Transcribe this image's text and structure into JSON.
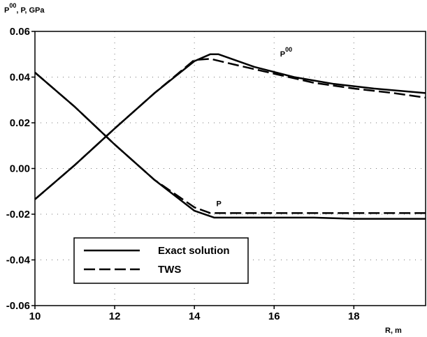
{
  "chart_data": {
    "type": "line",
    "ylabel": {
      "p_base": "P",
      "p_sup": "00",
      "rest": ", P, GPa"
    },
    "xlabel": "R, m",
    "xlim": [
      10,
      19.8
    ],
    "ylim": [
      -0.06,
      0.06
    ],
    "x_ticks": [
      10,
      12,
      14,
      16,
      18
    ],
    "y_ticks": [
      0.06,
      0.04,
      0.02,
      0.0,
      -0.02,
      -0.04,
      -0.06
    ],
    "y_tick_labels": [
      "0.06",
      "0.04",
      "0.02",
      "0.00",
      "-0.02",
      "-0.04",
      "-0.06"
    ],
    "grid": "dotted",
    "legend_position": "bottom-left",
    "series": [
      {
        "name": "Exact solution",
        "style": "solid",
        "curve": "P00",
        "x": [
          10,
          11,
          12,
          13,
          14,
          14.4,
          14.6,
          15.5,
          16.5,
          17.5,
          18.5,
          19.8
        ],
        "y": [
          -0.0135,
          0.0015,
          0.0175,
          0.033,
          0.047,
          0.05,
          0.05,
          0.0445,
          0.04,
          0.037,
          0.035,
          0.033
        ]
      },
      {
        "name": "Exact solution",
        "style": "solid",
        "curve": "P",
        "x": [
          10,
          11,
          12,
          13,
          14,
          14.5,
          15,
          16,
          17,
          18,
          19,
          19.8
        ],
        "y": [
          0.042,
          0.027,
          0.0105,
          -0.005,
          -0.0185,
          -0.0215,
          -0.0215,
          -0.0215,
          -0.0215,
          -0.022,
          -0.022,
          -0.022
        ]
      },
      {
        "name": "TWS",
        "style": "dashed",
        "curve": "P00",
        "x": [
          10,
          11,
          12,
          13,
          14,
          14.4,
          15,
          16,
          17,
          18,
          19,
          19.8
        ],
        "y": [
          -0.0135,
          0.0015,
          0.0175,
          0.033,
          0.0475,
          0.048,
          0.0455,
          0.0415,
          0.0375,
          0.035,
          0.033,
          0.031
        ]
      },
      {
        "name": "TWS",
        "style": "dashed",
        "curve": "P",
        "x": [
          10,
          11,
          12,
          13,
          14,
          14.4,
          15,
          16,
          17,
          18,
          19,
          19.8
        ],
        "y": [
          0.042,
          0.027,
          0.0105,
          -0.005,
          -0.017,
          -0.0195,
          -0.0195,
          -0.0195,
          -0.0195,
          -0.0195,
          -0.0195,
          -0.0195
        ]
      }
    ],
    "annotations": [
      {
        "text": "P",
        "sup": "00",
        "x": 16.15,
        "y": 0.049
      },
      {
        "text": "P",
        "sup": "",
        "x": 14.55,
        "y": -0.0165
      }
    ],
    "legend": [
      {
        "label": "Exact solution",
        "style": "solid"
      },
      {
        "label": "TWS",
        "style": "dashed"
      }
    ]
  }
}
